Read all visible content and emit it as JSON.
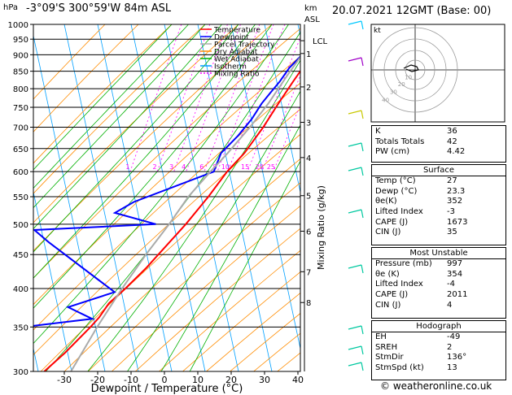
{
  "header": {
    "location": "-3°09'S  300°59'W  84m  ASL",
    "datetime": "20.07.2021  12GMT  (Base: 00)",
    "hpa_label": "hPa",
    "km_label": "km",
    "asl_label": "ASL",
    "footer": "© weatheronline.co.uk"
  },
  "colors": {
    "temperature": "#ff0000",
    "dewpoint": "#0000ff",
    "parcel": "#aaaaaa",
    "dry_adiabat": "#ff8c00",
    "wet_adiabat": "#00b000",
    "isotherm": "#00a0ff",
    "mixing_ratio": "#ff00ff"
  },
  "chart_data": {
    "type": "line",
    "title": "",
    "xlabel": "Dewpoint / Temperature (°C)",
    "ylabel": "Mixing Ratio (g/kg)",
    "x_ticks": [
      "-30",
      "-20",
      "-10",
      "0",
      "10",
      "20",
      "30",
      "40"
    ],
    "p_levels": [
      300,
      350,
      400,
      450,
      500,
      550,
      600,
      650,
      700,
      750,
      800,
      850,
      900,
      950,
      1000
    ],
    "km_ticks": [
      {
        "km": "8",
        "p": 381
      },
      {
        "km": "7",
        "p": 424
      },
      {
        "km": "6",
        "p": 488
      },
      {
        "km": "5",
        "p": 552
      },
      {
        "km": "4",
        "p": 630
      },
      {
        "km": "3",
        "p": 712
      },
      {
        "km": "2",
        "p": 805
      },
      {
        "km": "1",
        "p": 904
      }
    ],
    "lcl": {
      "label": "LCL",
      "p": 945
    },
    "mixing_ratio_labels": [
      "1",
      "2",
      "3",
      "4",
      "6",
      "8",
      "10",
      "15",
      "20",
      "25"
    ],
    "legend": [
      "Temperature",
      "Dewpoint",
      "Parcel Trajectory",
      "Dry Adiabat",
      "Wet Adiabat",
      "Isotherm",
      "Mixing Ratio"
    ],
    "series": [
      {
        "name": "Temperature",
        "points": [
          [
            29,
            1000
          ],
          [
            27,
            960
          ],
          [
            25,
            920
          ],
          [
            23,
            880
          ],
          [
            20,
            820
          ],
          [
            17,
            760
          ],
          [
            14,
            700
          ],
          [
            10,
            640
          ],
          [
            6,
            600
          ],
          [
            2,
            550
          ],
          [
            -3,
            500
          ],
          [
            -8,
            460
          ],
          [
            -12,
            430
          ],
          [
            -17,
            400
          ],
          [
            -21,
            380
          ],
          [
            -23,
            362
          ],
          [
            -25,
            350
          ],
          [
            -31,
            320
          ],
          [
            -36,
            300
          ]
        ]
      },
      {
        "name": "Dewpoint",
        "points": [
          [
            23,
            1000
          ],
          [
            23,
            960
          ],
          [
            20,
            930
          ],
          [
            21,
            900
          ],
          [
            18,
            860
          ],
          [
            16,
            820
          ],
          [
            14,
            790
          ],
          [
            12,
            760
          ],
          [
            10,
            720
          ],
          [
            7,
            680
          ],
          [
            3,
            640
          ],
          [
            2,
            600
          ],
          [
            -20,
            540
          ],
          [
            -25,
            520
          ],
          [
            -12,
            500
          ],
          [
            -48,
            490
          ],
          [
            -43,
            470
          ],
          [
            -20,
            395
          ],
          [
            -33,
            375
          ],
          [
            -25,
            360
          ],
          [
            -45,
            350
          ],
          [
            -50,
            340
          ],
          [
            -55,
            300
          ]
        ]
      },
      {
        "name": "Parcel Trajectory",
        "points": [
          [
            27,
            1000
          ],
          [
            23,
            945
          ],
          [
            21,
            900
          ],
          [
            18,
            840
          ],
          [
            14,
            760
          ],
          [
            10,
            700
          ],
          [
            5,
            640
          ],
          [
            1,
            600
          ],
          [
            -4,
            550
          ],
          [
            -8,
            500
          ],
          [
            -13,
            450
          ],
          [
            -18,
            400
          ],
          [
            -23,
            350
          ],
          [
            -28,
            300
          ]
        ]
      }
    ]
  },
  "hodograph": {
    "label": "kt",
    "rings": [
      "10",
      "20",
      "30",
      "40"
    ]
  },
  "indices": [
    {
      "label": "K",
      "value": "36"
    },
    {
      "label": "Totals Totals",
      "value": "42"
    },
    {
      "label": "PW (cm)",
      "value": "4.42"
    }
  ],
  "surface": {
    "title": "Surface",
    "rows": [
      {
        "label": "Temp (°C)",
        "value": "27"
      },
      {
        "label": "Dewp (°C)",
        "value": "23.3"
      },
      {
        "label": "θe(K)",
        "value": "352"
      },
      {
        "label": "Lifted Index",
        "value": "-3"
      },
      {
        "label": "CAPE (J)",
        "value": "1673"
      },
      {
        "label": "CIN (J)",
        "value": "35"
      }
    ]
  },
  "most_unstable": {
    "title": "Most Unstable",
    "rows": [
      {
        "label": "Pressure (mb)",
        "value": "997"
      },
      {
        "label": "θe (K)",
        "value": "354"
      },
      {
        "label": "Lifted Index",
        "value": "-4"
      },
      {
        "label": "CAPE (J)",
        "value": "2011"
      },
      {
        "label": "CIN (J)",
        "value": "4"
      }
    ]
  },
  "hodo_panel": {
    "title": "Hodograph",
    "rows": [
      {
        "label": "EH",
        "value": "-49"
      },
      {
        "label": "SREH",
        "value": "2"
      },
      {
        "label": "StmDir",
        "value": "136°"
      },
      {
        "label": "StmSpd (kt)",
        "value": "13"
      }
    ]
  }
}
